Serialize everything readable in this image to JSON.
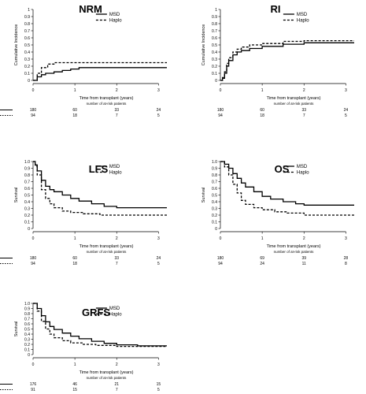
{
  "figure": {
    "x_label": "Time from transplant (years)",
    "risk_label": "number of at-risk patients",
    "legend": [
      "MSD",
      "Haplo"
    ]
  },
  "chart_data": [
    {
      "type": "line",
      "title": "NRM",
      "ylabel": "Cumulative Incidence",
      "xlabel": "Time from transplant (years)",
      "xlim": [
        0,
        3.2
      ],
      "ylim": [
        0,
        1
      ],
      "x_ticks": [
        "0",
        "1",
        "2",
        "3"
      ],
      "y_ticks": [
        "0",
        "0.1",
        "0.2",
        "0.3",
        "0.4",
        "0.5",
        "0.6",
        "0.7",
        "0.8",
        "0.9",
        "1"
      ],
      "legend": "top-right",
      "series": [
        {
          "name": "MSD",
          "style": "solid",
          "x": [
            0,
            0.1,
            0.2,
            0.3,
            0.5,
            0.7,
            0.9,
            1.1,
            3.2
          ],
          "y": [
            0,
            0.05,
            0.08,
            0.1,
            0.12,
            0.14,
            0.16,
            0.18,
            0.18
          ]
        },
        {
          "name": "Haplo",
          "style": "dashed",
          "x": [
            0,
            0.1,
            0.2,
            0.35,
            0.5,
            3.2
          ],
          "y": [
            0,
            0.1,
            0.18,
            0.23,
            0.25,
            0.25
          ]
        }
      ],
      "risk_table": {
        "MSD": [
          180,
          60,
          33,
          24
        ],
        "Haplo": [
          94,
          18,
          7,
          5
        ]
      }
    },
    {
      "type": "line",
      "title": "RI",
      "ylabel": "Cumulative Incidence",
      "xlabel": "Time from transplant (years)",
      "xlim": [
        0,
        3.2
      ],
      "ylim": [
        0,
        1
      ],
      "x_ticks": [
        "0",
        "1",
        "2",
        "3"
      ],
      "y_ticks": [
        "0",
        "0.1",
        "0.2",
        "0.3",
        "0.4",
        "0.5",
        "0.6",
        "0.7",
        "0.8",
        "0.9",
        "1"
      ],
      "legend": "top-right",
      "series": [
        {
          "name": "MSD",
          "style": "solid",
          "x": [
            0,
            0.05,
            0.1,
            0.15,
            0.2,
            0.3,
            0.4,
            0.5,
            0.7,
            1.0,
            1.5,
            2.0,
            3.2
          ],
          "y": [
            0,
            0.03,
            0.1,
            0.2,
            0.28,
            0.36,
            0.4,
            0.42,
            0.45,
            0.48,
            0.51,
            0.53,
            0.53
          ]
        },
        {
          "name": "Haplo",
          "style": "dashed",
          "x": [
            0,
            0.05,
            0.1,
            0.15,
            0.2,
            0.3,
            0.4,
            0.5,
            0.7,
            1.0,
            1.5,
            2.0,
            3.2
          ],
          "y": [
            0,
            0.04,
            0.12,
            0.24,
            0.32,
            0.4,
            0.44,
            0.47,
            0.5,
            0.52,
            0.55,
            0.56,
            0.56
          ]
        }
      ],
      "risk_table": {
        "MSD": [
          180,
          60,
          33,
          24
        ],
        "Haplo": [
          94,
          18,
          7,
          5
        ]
      }
    },
    {
      "type": "line",
      "title": "LFS",
      "ylabel": "Survival",
      "xlabel": "Time from transplant (years)",
      "xlim": [
        0,
        3.2
      ],
      "ylim": [
        0,
        1
      ],
      "x_ticks": [
        "0",
        "1",
        "2",
        "3"
      ],
      "y_ticks": [
        "0",
        "0.1",
        "0.2",
        "0.3",
        "0.4",
        "0.5",
        "0.6",
        "0.7",
        "0.8",
        "0.9",
        "1.0"
      ],
      "legend": "top-right",
      "series": [
        {
          "name": "MSD",
          "style": "solid",
          "x": [
            0,
            0.05,
            0.1,
            0.2,
            0.3,
            0.4,
            0.5,
            0.7,
            0.9,
            1.1,
            1.4,
            1.7,
            2.0,
            3.2
          ],
          "y": [
            1,
            0.95,
            0.86,
            0.72,
            0.63,
            0.58,
            0.55,
            0.5,
            0.45,
            0.41,
            0.37,
            0.33,
            0.31,
            0.31
          ]
        },
        {
          "name": "Haplo",
          "style": "dashed",
          "x": [
            0,
            0.05,
            0.1,
            0.2,
            0.3,
            0.4,
            0.5,
            0.7,
            0.9,
            1.2,
            1.6,
            3.2
          ],
          "y": [
            1,
            0.93,
            0.8,
            0.58,
            0.45,
            0.37,
            0.31,
            0.26,
            0.24,
            0.22,
            0.2,
            0.2
          ]
        }
      ],
      "risk_table": {
        "MSD": [
          180,
          60,
          33,
          24
        ],
        "Haplo": [
          94,
          18,
          7,
          5
        ]
      }
    },
    {
      "type": "line",
      "title": "OS",
      "ylabel": "Survival",
      "xlabel": "Time from transplant (years)",
      "xlim": [
        0,
        3.2
      ],
      "ylim": [
        0,
        1
      ],
      "x_ticks": [
        "0",
        "1",
        "2",
        "3"
      ],
      "y_ticks": [
        "0",
        "0.1",
        "0.2",
        "0.3",
        "0.4",
        "0.5",
        "0.6",
        "0.7",
        "0.8",
        "0.9",
        "1.0"
      ],
      "legend": "top-right",
      "series": [
        {
          "name": "MSD",
          "style": "solid",
          "x": [
            0,
            0.1,
            0.2,
            0.3,
            0.4,
            0.5,
            0.6,
            0.8,
            1.0,
            1.2,
            1.5,
            1.8,
            2.0,
            3.2
          ],
          "y": [
            1,
            0.96,
            0.9,
            0.82,
            0.75,
            0.68,
            0.62,
            0.55,
            0.48,
            0.44,
            0.4,
            0.37,
            0.35,
            0.35
          ]
        },
        {
          "name": "Haplo",
          "style": "dashed",
          "x": [
            0,
            0.1,
            0.2,
            0.3,
            0.4,
            0.5,
            0.6,
            0.8,
            1.0,
            1.3,
            1.6,
            2.0,
            3.2
          ],
          "y": [
            1,
            0.92,
            0.8,
            0.66,
            0.53,
            0.42,
            0.36,
            0.31,
            0.28,
            0.25,
            0.23,
            0.2,
            0.2
          ]
        }
      ],
      "risk_table": {
        "MSD": [
          180,
          69,
          39,
          28
        ],
        "Haplo": [
          94,
          24,
          11,
          8
        ]
      }
    },
    {
      "type": "line",
      "title": "GRFS",
      "ylabel": "Survival",
      "xlabel": "Time from transplant (years)",
      "xlim": [
        0,
        3.2
      ],
      "ylim": [
        0,
        1
      ],
      "x_ticks": [
        "0",
        "1",
        "2",
        "3"
      ],
      "y_ticks": [
        "0",
        "0.1",
        "0.2",
        "0.3",
        "0.4",
        "0.5",
        "0.6",
        "0.7",
        "0.8",
        "0.9",
        "1.0"
      ],
      "legend": "top-right",
      "series": [
        {
          "name": "MSD",
          "style": "solid",
          "x": [
            0,
            0.1,
            0.2,
            0.3,
            0.4,
            0.5,
            0.7,
            0.9,
            1.1,
            1.4,
            1.7,
            2.0,
            2.5,
            3.2
          ],
          "y": [
            1,
            0.9,
            0.76,
            0.64,
            0.55,
            0.49,
            0.42,
            0.36,
            0.31,
            0.26,
            0.22,
            0.19,
            0.17,
            0.17
          ]
        },
        {
          "name": "Haplo",
          "style": "dashed",
          "x": [
            0,
            0.1,
            0.2,
            0.3,
            0.4,
            0.5,
            0.7,
            0.9,
            1.2,
            1.5,
            2.0,
            3.2
          ],
          "y": [
            1,
            0.85,
            0.65,
            0.5,
            0.4,
            0.33,
            0.27,
            0.23,
            0.2,
            0.18,
            0.16,
            0.16
          ]
        }
      ],
      "risk_table": {
        "MSD": [
          176,
          46,
          21,
          15
        ],
        "Haplo": [
          91,
          15,
          7,
          5
        ]
      }
    }
  ]
}
